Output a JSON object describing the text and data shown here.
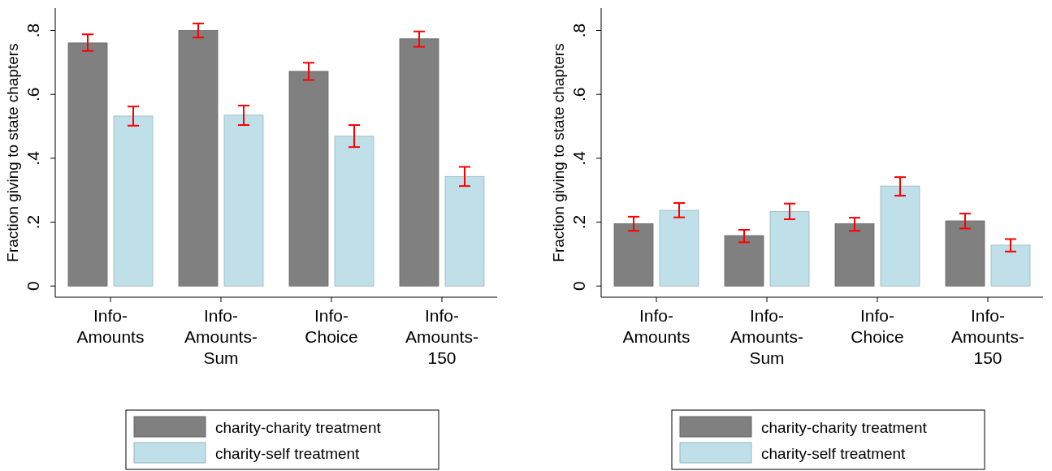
{
  "chart_data": [
    {
      "type": "bar",
      "ylabel": "Fraction giving to state chapters",
      "categories": [
        "Info-Amounts",
        "Info-Amounts-Sum",
        "Info-Choice",
        "Info-Amounts-150"
      ],
      "series": [
        {
          "name": "charity-charity treatment",
          "color": "#808080",
          "values": [
            0.761,
            0.8,
            0.672,
            0.774
          ],
          "errors": [
            [
              0.736,
              0.788
            ],
            [
              0.778,
              0.822
            ],
            [
              0.645,
              0.699
            ],
            [
              0.749,
              0.797
            ]
          ]
        },
        {
          "name": "charity-self treatment",
          "color": "#bfdfe9",
          "values": [
            0.532,
            0.535,
            0.469,
            0.343
          ],
          "errors": [
            [
              0.502,
              0.562
            ],
            [
              0.504,
              0.565
            ],
            [
              0.435,
              0.504
            ],
            [
              0.313,
              0.373
            ]
          ]
        }
      ],
      "ylim": [
        -0.035,
        0.87
      ],
      "yticks": [
        0,
        {
          "value": 0.2,
          "label": ".2"
        },
        {
          "value": 0.4,
          "label": ".4"
        },
        {
          "value": 0.6,
          "label": ".6"
        },
        {
          "value": 0.8,
          "label": ".8"
        }
      ],
      "grid": false,
      "legend": "bottom"
    },
    {
      "type": "bar",
      "ylabel": "Fraction giving to state chapters",
      "categories": [
        "Info-Amounts",
        "Info-Amounts-Sum",
        "Info-Choice",
        "Info-Amounts-150"
      ],
      "series": [
        {
          "name": "charity-charity treatment",
          "color": "#808080",
          "values": [
            0.195,
            0.158,
            0.195,
            0.204
          ],
          "errors": [
            [
              0.173,
              0.217
            ],
            [
              0.137,
              0.176
            ],
            [
              0.173,
              0.214
            ],
            [
              0.18,
              0.227
            ]
          ]
        },
        {
          "name": "charity-self treatment",
          "color": "#bfdfe9",
          "values": [
            0.237,
            0.233,
            0.313,
            0.128
          ],
          "errors": [
            [
              0.215,
              0.26
            ],
            [
              0.209,
              0.258
            ],
            [
              0.283,
              0.341
            ],
            [
              0.108,
              0.147
            ]
          ]
        }
      ],
      "ylim": [
        -0.035,
        0.87
      ],
      "yticks": [
        0,
        {
          "value": 0.2,
          "label": ".2"
        },
        {
          "value": 0.4,
          "label": ".4"
        },
        {
          "value": 0.6,
          "label": ".6"
        },
        {
          "value": 0.8,
          "label": ".8"
        }
      ],
      "grid": false,
      "legend": "bottom"
    }
  ]
}
